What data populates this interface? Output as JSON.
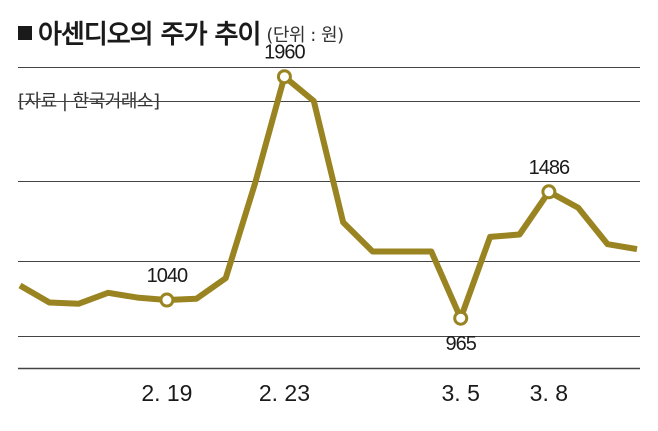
{
  "title": {
    "bullet": "■",
    "text": "아센디오의 주가 추이",
    "unit": "(단위 : 원)"
  },
  "source": "[자료 | 한국거래소]",
  "colors": {
    "line": "#9a8421",
    "grid": "#444444",
    "marker_fill": "#ffffff"
  },
  "chart_data": {
    "type": "line",
    "title": "아센디오의 주가 추이",
    "ylabel": "원",
    "ylim": [
      760,
      2000
    ],
    "gridlines": [
      890,
      1200,
      1530,
      1860
    ],
    "series": [
      {
        "name": "아센디오 주가",
        "values": [
          1100,
          1030,
          1025,
          1070,
          1050,
          1040,
          1045,
          1130,
          1520,
          1960,
          1860,
          1360,
          1240,
          1240,
          1240,
          965,
          1300,
          1310,
          1486,
          1420,
          1270,
          1250
        ]
      }
    ],
    "x_ticks": [
      {
        "index": 5,
        "label": "2. 19"
      },
      {
        "index": 9,
        "label": "2. 23"
      },
      {
        "index": 15,
        "label": "3. 5"
      },
      {
        "index": 18,
        "label": "3. 8"
      }
    ],
    "annotations": [
      {
        "index": 5,
        "label": "1040",
        "position": "above"
      },
      {
        "index": 9,
        "label": "1960",
        "position": "above"
      },
      {
        "index": 15,
        "label": "965",
        "position": "below"
      },
      {
        "index": 18,
        "label": "1486",
        "position": "above"
      }
    ]
  }
}
